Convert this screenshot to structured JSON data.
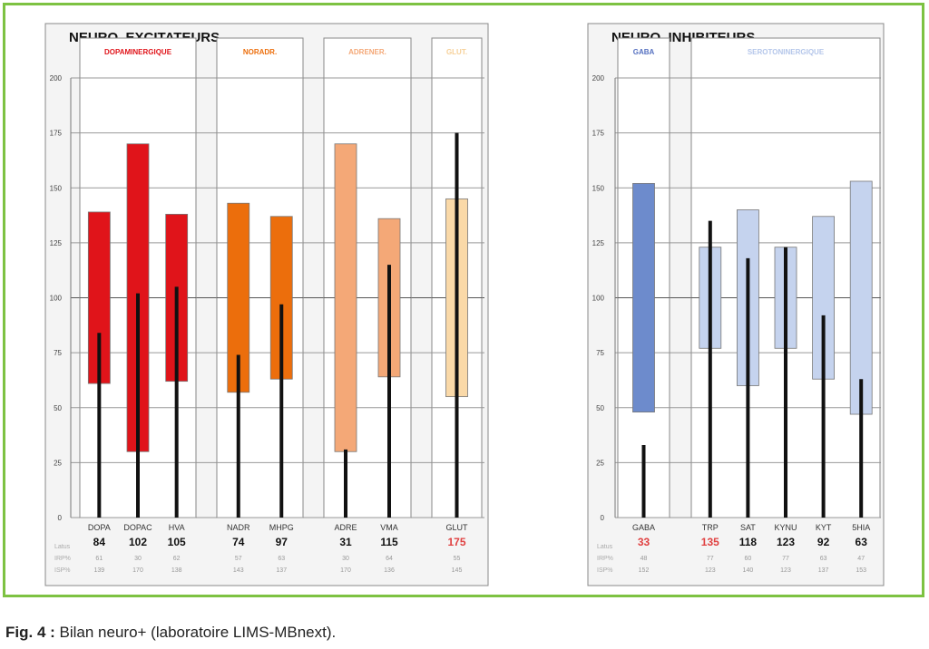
{
  "caption": {
    "label": "Fig. 4 :",
    "text": "Bilan neuro+ (laboratoire LIMS-MBnext)."
  },
  "colors": {
    "frame": "#7dc242",
    "dopa": "#e0141a",
    "nora": "#ec6e0c",
    "adren": "#f4a877",
    "glut": "#fad9a8",
    "gaba": "#6d8bcc",
    "sero": "#c5d3ee",
    "value_line": "#111111",
    "flag": "#e04040",
    "gaba_text": "#5570c0"
  },
  "row_labels": {
    "level": "Latus",
    "p_inf": "IRP%",
    "p_sup": "ISP%"
  },
  "chart_data": [
    {
      "type": "bar",
      "title": "NEURO. EXCITATEURS",
      "ylim": [
        0,
        200
      ],
      "yticks": [
        "0",
        "25",
        "50",
        "75",
        "100",
        "125",
        "150",
        "175",
        "200"
      ],
      "grid": true,
      "groups": [
        {
          "name": "DOPAMINERGIQUE",
          "color": "#e0141a",
          "label_color": "#e0141a",
          "items": [
            {
              "name": "DOPA",
              "low": 61,
              "high": 139,
              "value": 84,
              "level": "84",
              "p_inf": "61",
              "p_sup": "139",
              "flag": false
            },
            {
              "name": "DOPAC",
              "low": 30,
              "high": 170,
              "value": 102,
              "level": "102",
              "p_inf": "30",
              "p_sup": "170",
              "flag": false
            },
            {
              "name": "HVA",
              "low": 62,
              "high": 138,
              "value": 105,
              "level": "105",
              "p_inf": "62",
              "p_sup": "138",
              "flag": false
            }
          ]
        },
        {
          "name": "NORADR.",
          "color": "#ec6e0c",
          "label_color": "#ec6e0c",
          "items": [
            {
              "name": "NADR",
              "low": 57,
              "high": 143,
              "value": 74,
              "level": "74",
              "p_inf": "57",
              "p_sup": "143",
              "flag": false
            },
            {
              "name": "MHPG",
              "low": 63,
              "high": 137,
              "value": 97,
              "level": "97",
              "p_inf": "63",
              "p_sup": "137",
              "flag": false
            }
          ]
        },
        {
          "name": "ADRENER.",
          "color": "#f4a877",
          "label_color": "#f4a877",
          "items": [
            {
              "name": "ADRE",
              "low": 30,
              "high": 170,
              "value": 31,
              "level": "31",
              "p_inf": "30",
              "p_sup": "170",
              "flag": false
            },
            {
              "name": "VMA",
              "low": 64,
              "high": 136,
              "value": 115,
              "level": "115",
              "p_inf": "64",
              "p_sup": "136",
              "flag": false
            }
          ]
        },
        {
          "name": "GLUT.",
          "color": "#fad9a8",
          "label_color": "#f6cf96",
          "items": [
            {
              "name": "GLUT",
              "low": 55,
              "high": 145,
              "value": 175,
              "level": "175",
              "p_inf": "55",
              "p_sup": "145",
              "flag": true
            }
          ]
        }
      ]
    },
    {
      "type": "bar",
      "title": "NEURO. INHIBITEURS",
      "ylim": [
        0,
        200
      ],
      "yticks": [
        "0",
        "25",
        "50",
        "75",
        "100",
        "125",
        "150",
        "175",
        "200"
      ],
      "grid": true,
      "groups": [
        {
          "name": "GABA",
          "color": "#6d8bcc",
          "label_color": "#5570c0",
          "items": [
            {
              "name": "GABA",
              "low": 48,
              "high": 152,
              "value": 33,
              "level": "33",
              "p_inf": "48",
              "p_sup": "152",
              "flag": true
            }
          ]
        },
        {
          "name": "SEROTONINERGIQUE",
          "color": "#c5d3ee",
          "label_color": "#b4c6ea",
          "items": [
            {
              "name": "TRP",
              "low": 77,
              "high": 123,
              "value": 135,
              "level": "135",
              "p_inf": "77",
              "p_sup": "123",
              "flag": true
            },
            {
              "name": "SAT",
              "low": 60,
              "high": 140,
              "value": 118,
              "level": "118",
              "p_inf": "60",
              "p_sup": "140",
              "flag": false
            },
            {
              "name": "KYNU",
              "low": 77,
              "high": 123,
              "value": 123,
              "level": "123",
              "p_inf": "77",
              "p_sup": "123",
              "flag": false
            },
            {
              "name": "KYT",
              "low": 63,
              "high": 137,
              "value": 92,
              "level": "92",
              "p_inf": "63",
              "p_sup": "137",
              "flag": false
            },
            {
              "name": "5HIA",
              "low": 47,
              "high": 153,
              "value": 63,
              "level": "63",
              "p_inf": "47",
              "p_sup": "153",
              "flag": false
            }
          ]
        }
      ]
    }
  ]
}
